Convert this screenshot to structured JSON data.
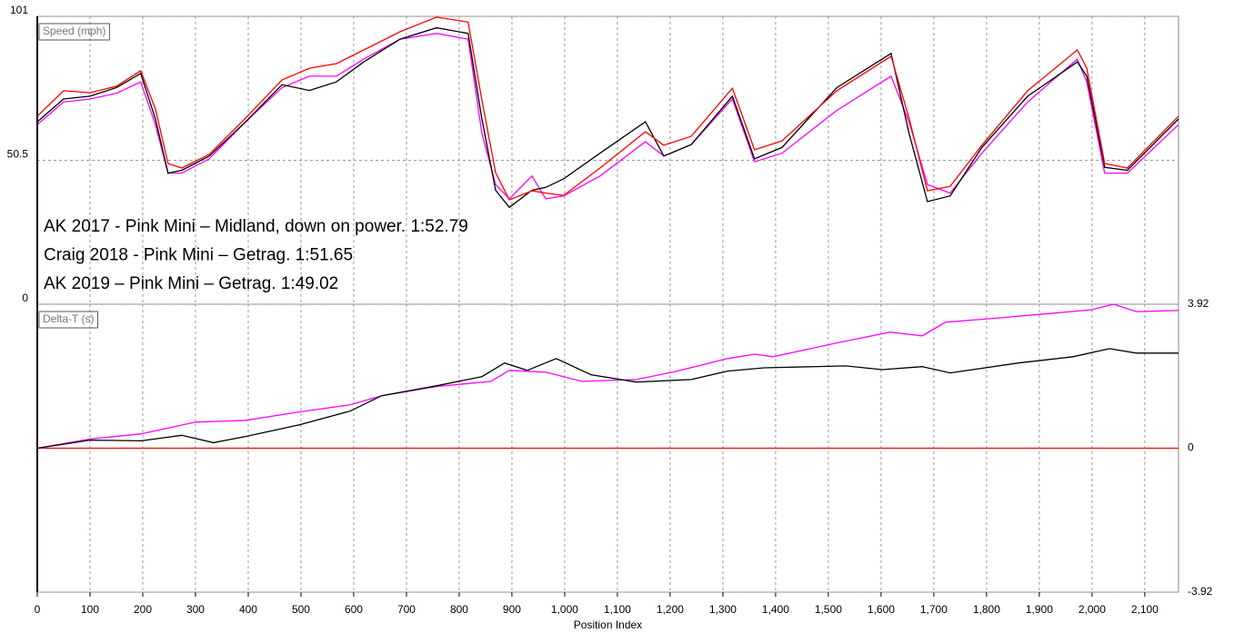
{
  "chart_data": [
    {
      "type": "line",
      "ylabel": "Speed (mph)",
      "xlim": [
        0,
        2164
      ],
      "xticks": [
        0,
        100,
        200,
        300,
        400,
        500,
        600,
        700,
        800,
        900,
        1000,
        1100,
        1200,
        1300,
        1400,
        1500,
        1600,
        1700,
        1800,
        1900,
        2000,
        2100
      ],
      "ylim": [
        0,
        101
      ],
      "yticks": [
        0,
        50.5,
        101
      ],
      "grid": true,
      "x": [
        0,
        50,
        100,
        150,
        196,
        224,
        248,
        274,
        326,
        395,
        464,
        516,
        567,
        619,
        688,
        757,
        817,
        843,
        869,
        895,
        938,
        964,
        998,
        1067,
        1153,
        1188,
        1240,
        1318,
        1360,
        1412,
        1516,
        1619,
        1653,
        1688,
        1731,
        1791,
        1878,
        1972,
        1990,
        2024,
        2067,
        2164
      ],
      "series": [
        {
          "color": "#ff00ff",
          "values": [
            63,
            71,
            72,
            74,
            78,
            63,
            46,
            46,
            51,
            64,
            76,
            80,
            80,
            86,
            93,
            95,
            93,
            60,
            42,
            37,
            45,
            37,
            38,
            45,
            57,
            52,
            56,
            72,
            50,
            53,
            68,
            80,
            64,
            42,
            39,
            53,
            71,
            86,
            78,
            46,
            46,
            63
          ]
        },
        {
          "color": "#000000",
          "values": [
            64,
            72,
            73,
            76,
            81,
            65,
            46,
            47,
            52,
            64,
            77,
            75,
            78,
            85,
            93,
            97,
            95,
            65,
            40,
            34,
            40,
            41,
            44,
            53,
            64,
            52,
            56,
            73,
            51,
            55,
            76,
            88,
            60,
            36,
            38,
            55,
            73,
            85,
            80,
            48,
            47,
            65
          ]
        },
        {
          "color": "#ff0000",
          "values": [
            66,
            74.9,
            74.2,
            76.5,
            81.9,
            68.5,
            49.4,
            47.8,
            52.6,
            65.3,
            78.7,
            82.8,
            84.4,
            89.2,
            95.6,
            100.7,
            99,
            71.7,
            46.2,
            36.6,
            39.8,
            39,
            38.2,
            47.8,
            60.5,
            55.8,
            58.9,
            75.8,
            54.2,
            57.3,
            74.9,
            87,
            65.3,
            39.8,
            41.4,
            55.8,
            74.9,
            89.2,
            82.8,
            49.4,
            47.8,
            66
          ]
        }
      ],
      "annotations": [
        {
          "text": "AK 2017 - Pink Mini – Midland, down on power. 1:52.79",
          "color": "#e8318b"
        },
        {
          "text": "Craig 2018 - Pink Mini – Getrag. 1:51.65",
          "color": "#000000"
        },
        {
          "text": "AK 2019 – Pink Mini – Getrag. 1:49.02",
          "color": "#ff0000"
        }
      ]
    },
    {
      "type": "line",
      "ylabel": "Delta-T (s)",
      "xlabel": "Position Index",
      "xlim": [
        0,
        2164
      ],
      "xticks": [
        0,
        100,
        200,
        300,
        400,
        500,
        600,
        700,
        800,
        900,
        {
          "value": 1000,
          "label": "1,000"
        },
        {
          "value": 1100,
          "label": "1,100"
        },
        {
          "value": 1200,
          "label": "1,200"
        },
        {
          "value": 1300,
          "label": "1,300"
        },
        {
          "value": 1400,
          "label": "1,400"
        },
        {
          "value": 1500,
          "label": "1,500"
        },
        {
          "value": 1600,
          "label": "1,600"
        },
        {
          "value": 1700,
          "label": "1,700"
        },
        {
          "value": 1800,
          "label": "1,800"
        },
        {
          "value": 1900,
          "label": "1,900"
        },
        {
          "value": 2000,
          "label": "2,000"
        },
        {
          "value": 2100,
          "label": "2,100"
        }
      ],
      "ylim": [
        -3.92,
        3.92
      ],
      "yticks": [
        -3.92,
        0,
        3.92
      ],
      "grid": true,
      "series": [
        {
          "color": "#ff0000",
          "x": [
            0,
            2164
          ],
          "values": [
            0,
            0
          ]
        },
        {
          "color": "#ff00ff",
          "x": [
            0,
            100,
            197,
            300,
            395,
            498,
            593,
            653,
            757,
            860,
            895,
            964,
            1033,
            1136,
            1205,
            1309,
            1360,
            1395,
            1514,
            1617,
            1678,
            1722,
            1826,
            1998,
            2041,
            2084,
            2164
          ],
          "values": [
            0,
            0.25,
            0.39,
            0.71,
            0.76,
            0.99,
            1.18,
            1.43,
            1.68,
            1.82,
            2.12,
            2.07,
            1.82,
            1.87,
            2.07,
            2.44,
            2.56,
            2.49,
            2.86,
            3.16,
            3.06,
            3.43,
            3.55,
            3.77,
            3.92,
            3.72,
            3.75
          ]
        },
        {
          "color": "#000000",
          "x": [
            0,
            100,
            197,
            274,
            334,
            395,
            498,
            593,
            653,
            757,
            843,
            886,
            929,
            984,
            1050,
            1136,
            1240,
            1309,
            1378,
            1533,
            1602,
            1678,
            1731,
            1860,
            1964,
            2033,
            2084,
            2164
          ],
          "values": [
            0,
            0.22,
            0.2,
            0.35,
            0.15,
            0.32,
            0.64,
            1.01,
            1.43,
            1.7,
            1.95,
            2.32,
            2.12,
            2.44,
            2,
            1.8,
            1.87,
            2.1,
            2.19,
            2.24,
            2.14,
            2.22,
            2.05,
            2.32,
            2.49,
            2.71,
            2.59,
            2.59
          ]
        }
      ]
    }
  ]
}
